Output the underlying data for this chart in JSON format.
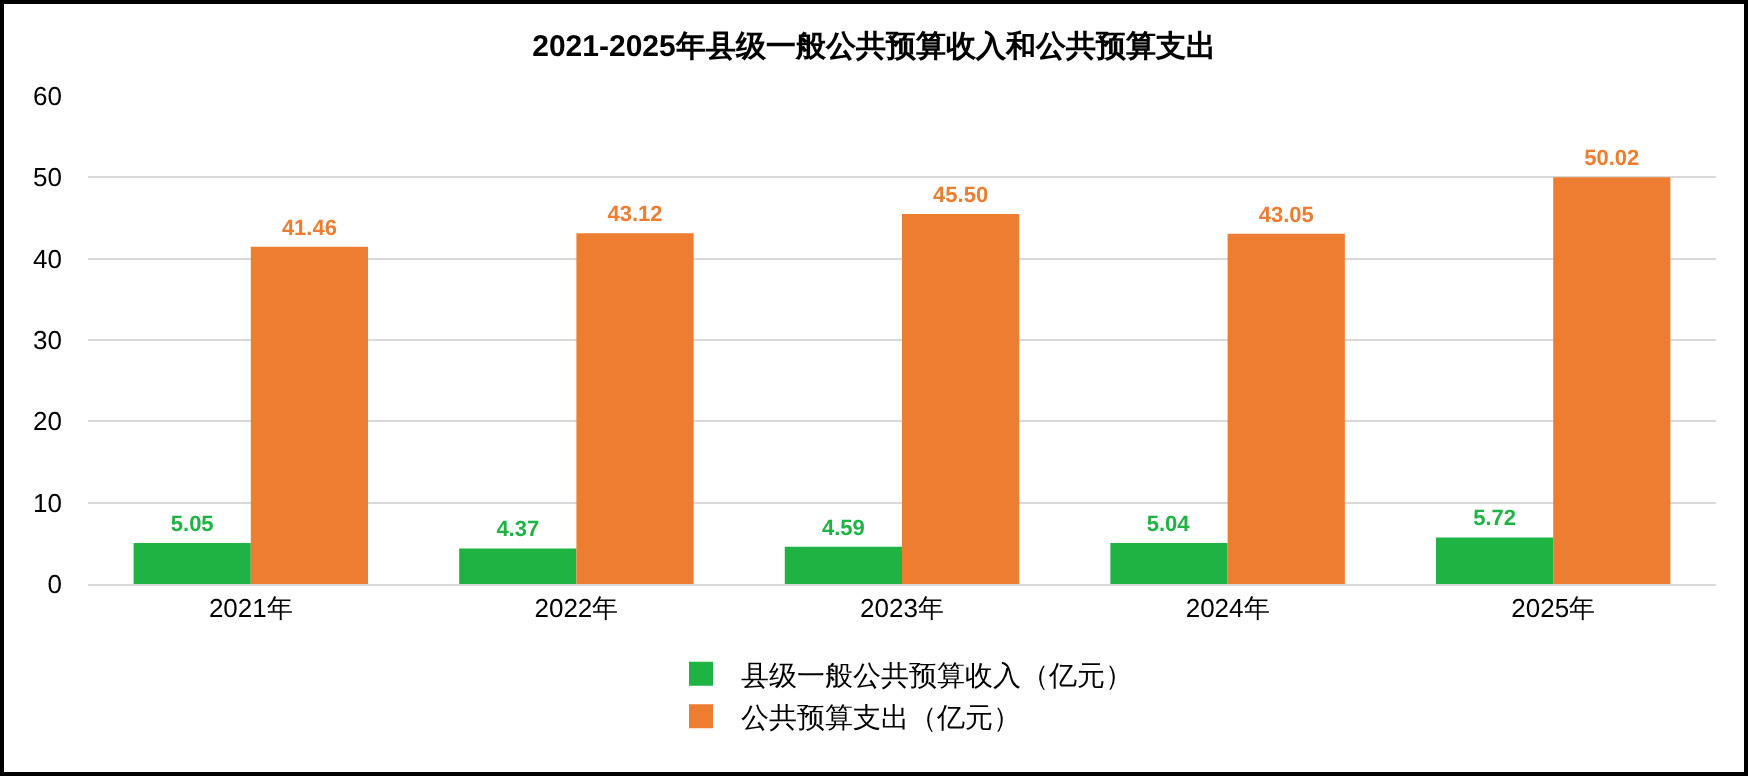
{
  "chart_data": {
    "type": "bar",
    "title": "2021-2025年县级一般公共预算收入和公共预算支出",
    "categories": [
      "2021年",
      "2022年",
      "2023年",
      "2024年",
      "2025年"
    ],
    "series": [
      {
        "name": "县级一般公共预算收入（亿元）",
        "color": "#1fb344",
        "values": [
          5.05,
          4.37,
          4.59,
          5.04,
          5.72
        ],
        "value_labels": [
          "5.05",
          "4.37",
          "4.59",
          "5.04",
          "5.72"
        ]
      },
      {
        "name": "公共预算支出（亿元）",
        "color": "#ed7d31",
        "values": [
          41.46,
          43.12,
          45.5,
          43.05,
          50.02
        ],
        "value_labels": [
          "41.46",
          "43.12",
          "45.50",
          "43.05",
          "50.02"
        ]
      }
    ],
    "ylim": [
      0,
      60
    ],
    "yticks": [
      0,
      10,
      20,
      30,
      40,
      50,
      60
    ],
    "grid": "y",
    "legend": "bottom"
  }
}
